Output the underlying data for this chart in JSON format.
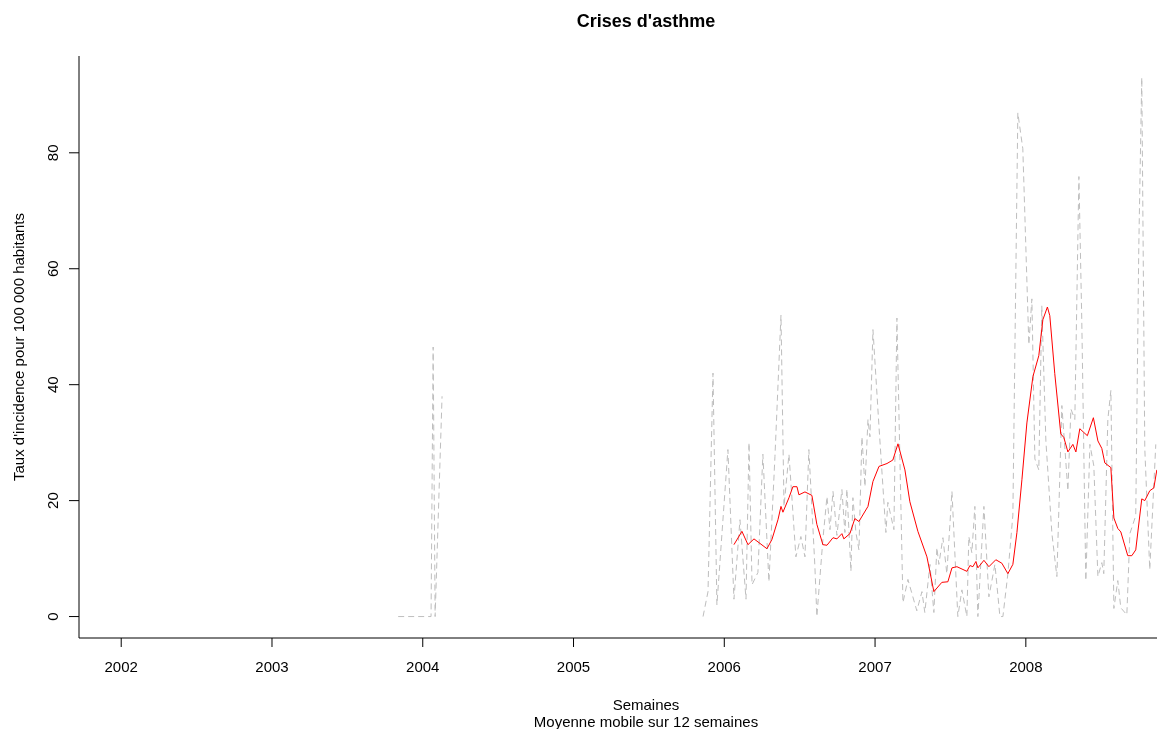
{
  "chart_data": {
    "type": "line",
    "title": "Crises d'asthme",
    "xlabel": "Semaines",
    "subtitle": "Moyenne mobile sur 12 semaines",
    "ylabel": "Taux d'incidence pour 100 000 habitants",
    "xlim": [
      2001.72,
      2008.87
    ],
    "xticks": [
      2002,
      2003,
      2004,
      2005,
      2006,
      2007,
      2008
    ],
    "ylim": [
      -3.7,
      96.7
    ],
    "yticks": [
      0,
      20,
      40,
      60,
      80
    ],
    "series": [
      {
        "color": "#bebebe",
        "line_style": "dashed",
        "x": [
          2003.837,
          2004.035,
          2004.055,
          2004.069,
          2004.082,
          2004.128,
          2004.147,
          2005.859,
          2005.892,
          2005.925,
          2005.951,
          2006.024,
          2006.064,
          2006.104,
          2006.144,
          2006.164,
          2006.184,
          2006.223,
          2006.256,
          2006.296,
          2006.336,
          2006.376,
          2006.396,
          2006.429,
          2006.475,
          2006.508,
          2006.535,
          2006.561,
          2006.601,
          2006.614,
          2006.654,
          2006.681,
          2006.701,
          2006.721,
          2006.747,
          2006.78,
          2006.8,
          2006.813,
          2006.84,
          2006.853,
          2006.873,
          2006.893,
          2006.913,
          2006.933,
          2006.953,
          2006.966,
          2006.986,
          2007.026,
          2007.072,
          2007.085,
          2007.125,
          2007.145,
          2007.185,
          2007.218,
          2007.277,
          2007.311,
          2007.33,
          2007.364,
          2007.39,
          2007.41,
          2007.423,
          2007.45,
          2007.476,
          2007.51,
          2007.549,
          2007.576,
          2007.609,
          2007.622,
          2007.642,
          2007.662,
          2007.682,
          2007.722,
          2007.755,
          2007.795,
          2007.828,
          2007.848,
          2007.881,
          2007.914,
          2007.947,
          2007.98,
          2008.02,
          2008.04,
          2008.06,
          2008.086,
          2008.106,
          2008.133,
          2008.173,
          2008.206,
          2008.239,
          2008.279,
          2008.299,
          2008.325,
          2008.352,
          2008.371,
          2008.398,
          2008.425,
          2008.451,
          2008.478,
          2008.504,
          2008.517,
          2008.544,
          2008.564,
          2008.584,
          2008.61,
          2008.63,
          2008.67,
          2008.69,
          2008.729,
          2008.749,
          2008.769,
          2008.789,
          2008.822,
          2008.862
        ],
        "values": [
          0,
          0,
          0,
          46.5,
          0,
          38,
          null,
          0,
          4.3,
          42,
          2,
          28.8,
          3,
          16.7,
          3,
          30,
          5.5,
          7.6,
          28,
          6,
          27.6,
          52,
          19,
          28,
          10.3,
          13.8,
          10.3,
          28.8,
          8.6,
          0,
          13.3,
          20.7,
          15,
          21.6,
          14,
          21.9,
          14.5,
          22,
          7.8,
          20.5,
          14.5,
          11.5,
          31,
          22.4,
          34,
          31,
          49.5,
          32.8,
          14.5,
          19.7,
          15,
          51.5,
          2.4,
          6.4,
          1,
          4.3,
          0.7,
          9,
          0.7,
          11.9,
          9,
          13.6,
          7.4,
          21.6,
          0,
          4.6,
          0,
          13.8,
          11,
          19,
          0,
          19,
          3.4,
          9,
          0,
          0,
          7.4,
          17.5,
          86.9,
          80.7,
          46.9,
          54.8,
          27.2,
          25.3,
          53.6,
          30.3,
          14.3,
          6.9,
          36.4,
          21.7,
          35.8,
          34,
          75.9,
          51.2,
          6.2,
          29.7,
          26,
          6.9,
          9.3,
          7.4,
          34,
          39,
          1.4,
          6.2,
          1.5,
          0.3,
          14.3,
          17.4,
          63.4,
          93,
          29,
          8.1,
          29.7
        ]
      },
      {
        "color": "#ff0000",
        "line_style": "solid",
        "x": [
          2006.064,
          2006.117,
          2006.157,
          2006.197,
          2006.283,
          2006.316,
          2006.356,
          2006.376,
          2006.389,
          2006.429,
          2006.455,
          2006.482,
          2006.495,
          2006.535,
          2006.581,
          2006.614,
          2006.654,
          2006.681,
          2006.721,
          2006.747,
          2006.78,
          2006.793,
          2006.833,
          2006.866,
          2006.893,
          2006.953,
          2006.986,
          2007.026,
          2007.079,
          2007.118,
          2007.152,
          2007.198,
          2007.231,
          2007.284,
          2007.344,
          2007.39,
          2007.443,
          2007.483,
          2007.51,
          2007.543,
          2007.609,
          2007.629,
          2007.649,
          2007.669,
          2007.682,
          2007.722,
          2007.755,
          2007.801,
          2007.841,
          2007.881,
          2007.914,
          2007.941,
          2007.974,
          2008.007,
          2008.047,
          2008.086,
          2008.113,
          2008.143,
          2008.159,
          2008.192,
          2008.232,
          2008.252,
          2008.279,
          2008.312,
          2008.332,
          2008.358,
          2008.408,
          2008.448,
          2008.478,
          2008.504,
          2008.524,
          2008.564,
          2008.584,
          2008.61,
          2008.63,
          2008.676,
          2008.703,
          2008.729,
          2008.769,
          2008.789,
          2008.822,
          2008.849,
          2008.869
        ],
        "values": [
          12.4,
          14.7,
          12.4,
          13.4,
          11.7,
          13.3,
          16.7,
          19,
          18,
          20.5,
          22.4,
          22.4,
          21,
          21.5,
          20.9,
          15.9,
          12.4,
          12.3,
          13.6,
          13.4,
          14.3,
          13.4,
          14.3,
          16.9,
          16.4,
          19,
          23.3,
          25.9,
          26.4,
          27,
          29.8,
          25.3,
          19.8,
          14.7,
          10.3,
          4.3,
          5.9,
          6,
          8.4,
          8.6,
          7.8,
          8.8,
          8.6,
          9.5,
          8.4,
          9.7,
          8.6,
          9.8,
          9.2,
          7.4,
          9,
          14.5,
          23.6,
          33.4,
          41.4,
          45,
          51.2,
          53.4,
          51.9,
          41.9,
          31.5,
          30.9,
          28.4,
          29.7,
          28.4,
          32.4,
          31.2,
          34.3,
          30.3,
          29,
          26.5,
          25.7,
          17,
          15.2,
          14.6,
          10.5,
          10.5,
          11.5,
          20.3,
          20,
          21.7,
          22.2,
          25.3
        ]
      }
    ]
  }
}
